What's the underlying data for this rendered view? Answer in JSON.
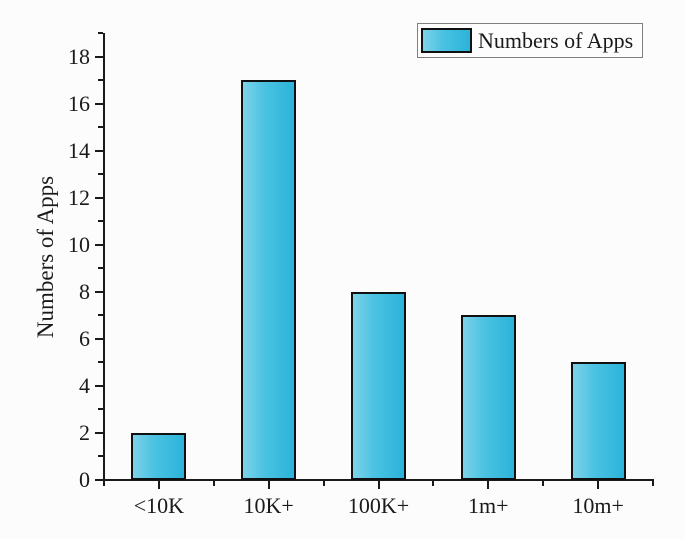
{
  "chart_data": {
    "type": "bar",
    "categories": [
      "<10K",
      "10K+",
      "100K+",
      "1m+",
      "10m+"
    ],
    "values": [
      2,
      17,
      8,
      7,
      5
    ],
    "series": [
      {
        "name": "Numbers of Apps",
        "values": [
          2,
          17,
          8,
          7,
          5
        ]
      }
    ],
    "title": "",
    "xlabel": "",
    "ylabel": "Numbers of Apps",
    "ylim": [
      0,
      19
    ],
    "y_major_ticks": [
      0,
      2,
      4,
      6,
      8,
      10,
      12,
      14,
      16,
      18
    ],
    "y_minor_ticks": [
      1,
      3,
      5,
      7,
      9,
      11,
      13,
      15,
      17,
      19
    ],
    "grid": false,
    "legend": {
      "label": "Numbers of Apps",
      "position": "top-right"
    },
    "colors": {
      "bar_gradient_left": "#7ed2e9",
      "bar_gradient_mid": "#4cc3e2",
      "bar_gradient_right": "#2bb3da",
      "bar_border": "#101010",
      "axis": "#1a1a1a",
      "background": "#fcfcfc",
      "legend_border": "#7f7f7f"
    }
  }
}
